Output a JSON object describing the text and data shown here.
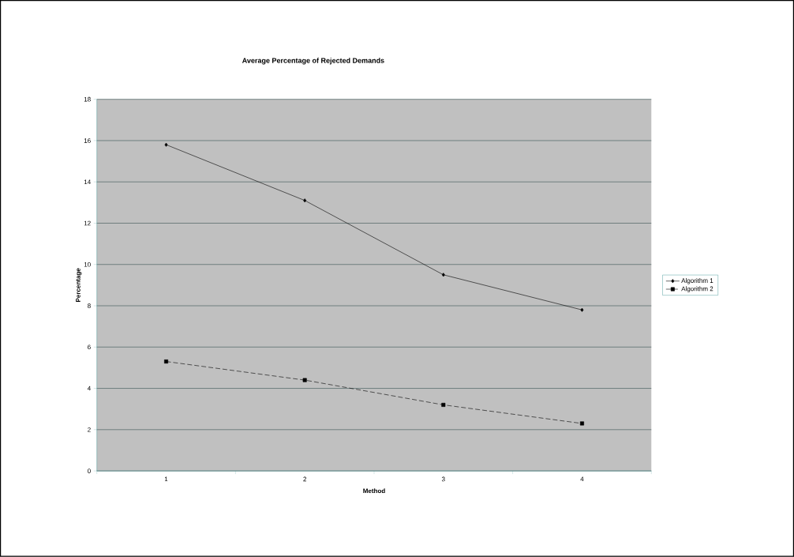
{
  "chart_data": {
    "type": "line",
    "title": "Average Percentage of Rejected Demands",
    "xlabel": "Method",
    "ylabel": "Percentage",
    "categories": [
      "1",
      "2",
      "3",
      "4"
    ],
    "series": [
      {
        "name": "Algorithm 1",
        "color": "#000000",
        "marker": "diamond",
        "line_style": "solid",
        "values": [
          15.8,
          13.1,
          9.5,
          7.8
        ]
      },
      {
        "name": "Algorithm 2",
        "color": "#000000",
        "marker": "square",
        "line_style": "dashed",
        "values": [
          5.3,
          4.4,
          3.2,
          2.3
        ]
      }
    ],
    "ylim": [
      0,
      18
    ],
    "yticks": [
      0,
      2,
      4,
      6,
      8,
      10,
      12,
      14,
      16,
      18
    ],
    "grid": "y",
    "legend": "right"
  }
}
